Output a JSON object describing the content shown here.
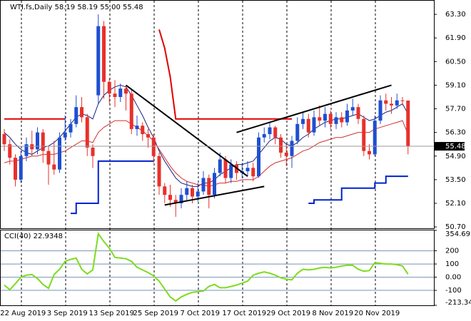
{
  "chart_data": [
    {
      "type": "candlestick",
      "title": "WTI.fs,Daily",
      "header_values": [
        "58.19",
        "58.19",
        "55.00",
        "55.48"
      ],
      "last_label": "55.48",
      "categories": [
        null,
        null,
        null,
        "22 Aug 2019",
        null,
        null,
        null,
        null,
        null,
        null,
        null,
        "3 Sep 2019",
        null,
        null,
        null,
        null,
        null,
        null,
        null,
        "13 Sep 2019",
        null,
        null,
        null,
        null,
        null,
        null,
        null,
        "25 Sep 2019",
        null,
        null,
        null,
        null,
        null,
        null,
        null,
        "7 Oct 2019",
        null,
        null,
        null,
        null,
        null,
        null,
        null,
        "17 Oct 2019",
        null,
        null,
        null,
        null,
        null,
        null,
        null,
        "29 Oct 2019",
        null,
        null,
        null,
        null,
        null,
        null,
        null,
        "8 Nov 2019",
        null,
        null,
        null,
        null,
        null,
        null,
        null,
        "20 Nov 2019",
        null,
        null,
        null,
        null,
        null,
        null
      ],
      "open": [
        56.2,
        55.6,
        54.8,
        53.5,
        54.9,
        55.6,
        55.3,
        56.3,
        55.2,
        54.4,
        54.1,
        56.0,
        56.3,
        56.8,
        57.8,
        57.2,
        55.4,
        58.5,
        62.6,
        59.3,
        58.6,
        58.4,
        58.9,
        58.6,
        56.5,
        56.7,
        56.2,
        56.0,
        54.9,
        53.1,
        52.6,
        52.3,
        52.1,
        52.6,
        53.0,
        52.5,
        52.8,
        53.6,
        52.6,
        53.9,
        54.7,
        53.6,
        54.4,
        53.9,
        54.0,
        54.2,
        53.7,
        56.0,
        56.2,
        56.6,
        56.0,
        55.1,
        54.9,
        55.8,
        56.8,
        57.1,
        56.3,
        57.2,
        57.0,
        57.4,
        56.8,
        57.2,
        56.9,
        57.6,
        57.8,
        57.1,
        55.2,
        55.0,
        57.0,
        58.2,
        58.0,
        57.9,
        58.2,
        58.19
      ],
      "high": [
        56.5,
        55.9,
        55.0,
        55.2,
        56.0,
        56.4,
        56.6,
        56.5,
        55.5,
        55.8,
        56.3,
        57.3,
        57.1,
        58.5,
        58.4,
        57.4,
        55.6,
        63.3,
        62.9,
        59.5,
        59.4,
        59.2,
        59.1,
        58.8,
        57.3,
        56.9,
        56.5,
        56.2,
        55.1,
        53.3,
        53.2,
        52.6,
        53.0,
        53.4,
        53.2,
        53.3,
        54.0,
        53.8,
        54.2,
        55.1,
        54.9,
        54.7,
        54.6,
        54.5,
        54.6,
        54.5,
        56.3,
        56.6,
        56.9,
        56.7,
        56.2,
        55.6,
        56.1,
        57.2,
        57.5,
        57.4,
        57.6,
        57.9,
        57.8,
        57.6,
        57.5,
        57.5,
        58.0,
        58.3,
        58.0,
        57.3,
        55.6,
        57.3,
        58.5,
        58.6,
        58.4,
        58.6,
        58.4,
        58.19
      ],
      "low": [
        55.2,
        54.4,
        53.1,
        53.3,
        54.6,
        54.9,
        55.0,
        54.5,
        53.2,
        53.8,
        53.9,
        55.8,
        56.0,
        56.6,
        56.9,
        54.9,
        54.2,
        58.0,
        58.3,
        58.0,
        57.8,
        58.1,
        57.6,
        56.2,
        56.1,
        55.8,
        55.4,
        54.5,
        52.6,
        52.1,
        51.9,
        51.3,
        51.8,
        52.3,
        52.1,
        52.2,
        52.6,
        51.8,
        52.4,
        53.7,
        53.3,
        53.3,
        53.5,
        53.6,
        53.7,
        53.4,
        53.6,
        55.7,
        55.9,
        55.6,
        54.8,
        54.3,
        54.2,
        55.6,
        56.5,
        56.0,
        56.1,
        56.7,
        56.6,
        56.5,
        56.5,
        56.6,
        56.7,
        57.3,
        56.8,
        54.9,
        54.7,
        54.9,
        56.8,
        57.6,
        57.4,
        57.7,
        57.9,
        55.0
      ],
      "close": [
        55.6,
        54.8,
        53.5,
        54.9,
        55.6,
        55.3,
        56.3,
        55.2,
        54.4,
        54.1,
        56.0,
        56.3,
        56.8,
        57.8,
        57.2,
        55.4,
        54.9,
        62.6,
        59.3,
        58.6,
        58.4,
        58.9,
        58.6,
        56.5,
        56.7,
        56.2,
        56.0,
        54.9,
        53.1,
        52.6,
        52.3,
        52.1,
        52.6,
        53.0,
        52.5,
        52.8,
        53.6,
        52.6,
        53.9,
        54.7,
        53.6,
        54.4,
        53.9,
        54.0,
        54.2,
        53.7,
        56.0,
        56.2,
        56.6,
        56.0,
        55.1,
        54.9,
        55.8,
        56.8,
        57.1,
        56.3,
        57.2,
        57.0,
        57.4,
        56.8,
        57.2,
        56.9,
        57.6,
        57.8,
        57.1,
        55.2,
        55.0,
        57.0,
        58.2,
        58.0,
        57.9,
        58.2,
        58.19,
        55.48
      ],
      "up_color": "#1f4fd0",
      "down_color": "#e8302a",
      "overlays": [
        {
          "color": "#1a237e",
          "width": 1,
          "step": false,
          "values": [
            56.3,
            56.0,
            55.6,
            55.3,
            55.1,
            55.0,
            55.2,
            55.4,
            55.5,
            55.7,
            56.0,
            56.4,
            56.8,
            57.2,
            57.4,
            57.3,
            57.1,
            58.0,
            58.5,
            58.8,
            59.0,
            59.1,
            59.0,
            58.5,
            57.9,
            57.3,
            56.6,
            56.0,
            55.2,
            54.6,
            54.1,
            53.6,
            53.3,
            53.2,
            53.1,
            53.1,
            53.3,
            53.3,
            53.5,
            53.8,
            54.0,
            54.2,
            54.4,
            54.4,
            54.5,
            54.6,
            55.0,
            55.4,
            55.8,
            56.0,
            55.9,
            55.6,
            55.5,
            55.7,
            56.0,
            56.2,
            56.5,
            56.7,
            56.9,
            57.0,
            57.1,
            57.1,
            57.2,
            57.3,
            57.4,
            57.2,
            57.0,
            57.1,
            57.3,
            57.5,
            57.6,
            57.8,
            58.0,
            57.4
          ]
        },
        {
          "color": "#d32f2f",
          "width": 1,
          "step": false,
          "values": [
            54.5,
            54.6,
            54.6,
            54.7,
            54.8,
            54.9,
            54.9,
            55.0,
            55.0,
            55.0,
            55.1,
            55.2,
            55.4,
            55.6,
            55.8,
            55.8,
            55.7,
            56.3,
            56.6,
            56.8,
            57.0,
            57.0,
            57.0,
            56.8,
            56.6,
            56.4,
            56.1,
            55.8,
            55.3,
            54.8,
            54.3,
            53.9,
            53.6,
            53.4,
            53.3,
            53.2,
            53.2,
            53.1,
            53.2,
            53.3,
            53.3,
            53.4,
            53.4,
            53.5,
            53.5,
            53.5,
            53.7,
            54.0,
            54.3,
            54.5,
            54.6,
            54.7,
            54.8,
            55.0,
            55.2,
            55.3,
            55.5,
            55.7,
            55.8,
            55.9,
            56.0,
            56.0,
            56.1,
            56.2,
            56.3,
            56.3,
            56.3,
            56.5,
            56.6,
            56.7,
            56.8,
            56.9,
            57.0,
            56.2
          ]
        },
        {
          "color": "#e00000",
          "width": 2,
          "step": false,
          "values": [
            57.1,
            57.1,
            57.1,
            57.1,
            57.1,
            57.1,
            57.1,
            57.1,
            57.1,
            57.1,
            57.1,
            57.1,
            null,
            null,
            null,
            null,
            null,
            null,
            null,
            null,
            null,
            null,
            null,
            null,
            null,
            null,
            null,
            null,
            62.4,
            61.3,
            59.6,
            57.1,
            57.1,
            57.1,
            57.1,
            57.1,
            57.1,
            57.1,
            57.1,
            57.1,
            57.1,
            57.1,
            57.1,
            57.1,
            57.1,
            57.1,
            57.1,
            57.1,
            57.1,
            57.1,
            57.1,
            57.1,
            57.1,
            null,
            null,
            null,
            null,
            null,
            null,
            null,
            null,
            null,
            null,
            null,
            null,
            null,
            null,
            null,
            null,
            null,
            null,
            null,
            null,
            null
          ]
        },
        {
          "color": "#0020d0",
          "width": 2,
          "step": true,
          "values": [
            null,
            null,
            null,
            null,
            null,
            null,
            null,
            null,
            null,
            null,
            null,
            null,
            51.5,
            52.1,
            52.1,
            52.1,
            52.1,
            54.6,
            54.6,
            54.6,
            54.6,
            54.6,
            54.6,
            54.6,
            54.6,
            54.6,
            54.6,
            54.6,
            null,
            null,
            null,
            null,
            null,
            null,
            null,
            null,
            null,
            null,
            null,
            null,
            null,
            null,
            null,
            null,
            null,
            null,
            null,
            null,
            null,
            null,
            null,
            null,
            null,
            null,
            null,
            52.1,
            52.3,
            52.3,
            52.3,
            52.3,
            52.3,
            53.0,
            53.0,
            53.0,
            53.0,
            53.0,
            53.0,
            53.3,
            53.3,
            53.7,
            53.7,
            53.7,
            53.7,
            53.7
          ]
        }
      ],
      "trendlines": [
        {
          "color": "#000000",
          "x": [
            22,
            44
          ],
          "y": [
            59.1,
            53.7
          ]
        },
        {
          "color": "#000000",
          "x": [
            29,
            47
          ],
          "y": [
            52.0,
            53.1
          ]
        },
        {
          "color": "#000000",
          "x": [
            42,
            70
          ],
          "y": [
            56.3,
            59.1
          ]
        }
      ],
      "ylim": [
        50.62,
        63.98
      ],
      "yticks": [
        {
          "value": 63.3,
          "label": "63.30"
        },
        {
          "value": 61.9,
          "label": "61.90"
        },
        {
          "value": 60.5,
          "label": "60.50"
        },
        {
          "value": 59.1,
          "label": "59.10"
        },
        {
          "value": 57.7,
          "label": "57.70"
        },
        {
          "value": 56.3,
          "label": "56.30"
        },
        {
          "value": 54.9,
          "label": "54.90"
        },
        {
          "value": 53.5,
          "label": "53.50"
        },
        {
          "value": 52.1,
          "label": "52.10"
        },
        {
          "value": 50.7,
          "label": "50.70"
        }
      ],
      "grid": true
    },
    {
      "type": "line",
      "series": [
        {
          "name": "CCI(40)",
          "color": "#7ddc1f",
          "values": [
            -60,
            -95,
            -50,
            0,
            15,
            20,
            -10,
            -55,
            -85,
            20,
            60,
            120,
            135,
            145,
            60,
            25,
            55,
            330,
            270,
            220,
            150,
            145,
            140,
            120,
            75,
            55,
            35,
            10,
            -30,
            -90,
            -150,
            -180,
            -150,
            -130,
            -115,
            -110,
            -105,
            -70,
            -55,
            -80,
            -80,
            -70,
            -60,
            -45,
            -30,
            15,
            30,
            40,
            30,
            15,
            -5,
            -15,
            -20,
            30,
            60,
            55,
            60,
            70,
            75,
            70,
            75,
            85,
            90,
            90,
            60,
            45,
            50,
            110,
            105,
            100,
            100,
            95,
            85,
            22.9348
          ]
        }
      ],
      "ylim": [
        -213.34,
        354.6973
      ],
      "yticks": [
        354.6973,
        200,
        100,
        {
          "value": 0,
          "label": "0.00"
        },
        -100,
        {
          "value": -213.34,
          "label": "-213.340"
        }
      ],
      "level_color": "#7a93b8"
    }
  ]
}
